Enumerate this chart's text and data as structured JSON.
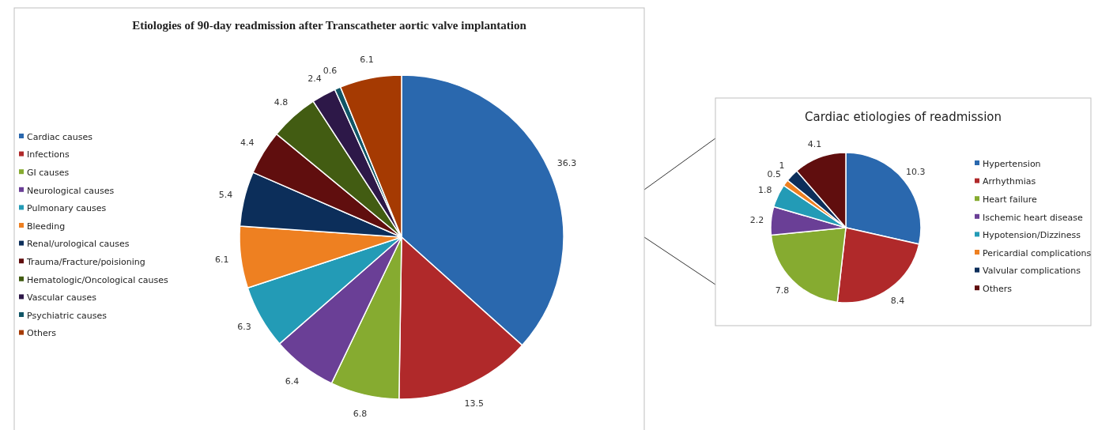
{
  "chart_data": [
    {
      "type": "pie",
      "title": "Etiologies of 90-day readmission after Transcatheter aortic valve implantation",
      "categories": [
        "Cardiac causes",
        "Infections",
        "GI causes",
        "Neurological causes",
        "Pulmonary causes",
        "Bleeding",
        "Renal/urological causes",
        "Trauma/Fracture/poisioning",
        "Hematologic/Oncological causes",
        "Vascular causes",
        "Psychiatric causes",
        "Others"
      ],
      "values": [
        36.3,
        13.5,
        6.8,
        6.4,
        6.3,
        6.1,
        5.4,
        4.4,
        4.8,
        2.4,
        0.6,
        6.1
      ],
      "colors": [
        "#2a68ae",
        "#b0292a",
        "#86ab30",
        "#6a3f96",
        "#239bb6",
        "#ee8021",
        "#0c2e5a",
        "#600e0e",
        "#425c12",
        "#2d1848",
        "#105566",
        "#a53a02"
      ],
      "data_labels": true,
      "legend": "left"
    },
    {
      "type": "pie",
      "title": "Cardiac etiologies of readmission",
      "categories": [
        "Hypertension",
        "Arrhythmias",
        "Heart failure",
        "Ischemic heart disease",
        "Hypotension/Dizziness",
        "Pericardial complications",
        "Valvular complications",
        "Others"
      ],
      "values": [
        10.3,
        8.4,
        7.8,
        2.2,
        1.8,
        0.5,
        1,
        4.1
      ],
      "colors": [
        "#2a68ae",
        "#b0292a",
        "#86ab30",
        "#6a3f96",
        "#239bb6",
        "#ee8021",
        "#0c2e5a",
        "#600e0e"
      ],
      "data_labels": true,
      "legend": "right"
    }
  ]
}
